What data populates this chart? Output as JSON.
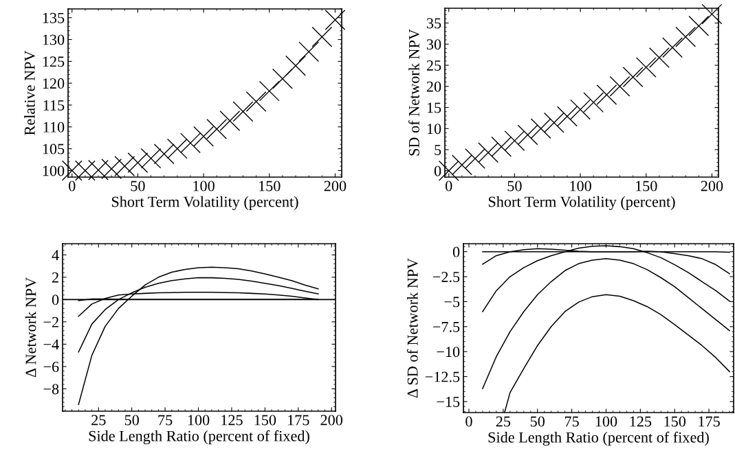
{
  "chart_data": [
    {
      "type": "scatter",
      "xlabel": "Short Term Volatility (percent)",
      "ylabel": "Relative NPV",
      "marker": "cross",
      "xlim": [
        -3,
        205
      ],
      "ylim": [
        98.5,
        137
      ],
      "xticks": [
        0,
        50,
        100,
        150,
        200
      ],
      "yticks": [
        100,
        105,
        110,
        115,
        120,
        125,
        130,
        135
      ],
      "x": [
        0,
        10,
        20,
        30,
        40,
        50,
        60,
        70,
        80,
        90,
        100,
        110,
        120,
        130,
        140,
        150,
        160,
        170,
        180,
        190,
        200
      ],
      "series": [
        {
          "color": "#000000",
          "values": [
            100,
            100,
            100.1,
            100.4,
            101,
            101.8,
            102.8,
            103.8,
            105,
            106.3,
            107.8,
            109.5,
            111.4,
            113.5,
            115.8,
            118.2,
            121,
            124,
            127.2,
            130.6,
            134.5
          ]
        }
      ]
    },
    {
      "type": "scatter",
      "xlabel": "Short Term Volatility (percent)",
      "ylabel": "SD of Network NPV",
      "marker": "cross",
      "xlim": [
        -3,
        205
      ],
      "ylim": [
        -1.5,
        38.5
      ],
      "xticks": [
        0,
        50,
        100,
        150,
        200
      ],
      "yticks": [
        0,
        5,
        10,
        15,
        20,
        25,
        30,
        35
      ],
      "x": [
        0,
        10,
        20,
        30,
        40,
        50,
        60,
        70,
        80,
        90,
        100,
        110,
        120,
        130,
        140,
        150,
        160,
        170,
        180,
        190,
        200
      ],
      "series": [
        {
          "color": "#000000",
          "values": [
            0,
            1.4,
            2.9,
            4.3,
            5.7,
            7.1,
            8.5,
            10,
            11.4,
            12.9,
            14.5,
            16.2,
            18,
            20,
            22.2,
            24.5,
            26.8,
            29.2,
            31.7,
            34.3,
            37.1
          ]
        }
      ]
    },
    {
      "type": "line",
      "xlabel": "Side Length Ratio (percent of fixed)",
      "ylabel": "Δ Network NPV",
      "marker": "none",
      "line_style": "solid",
      "xlim": [
        -2,
        203
      ],
      "ylim": [
        -10,
        5
      ],
      "xticks": [
        25,
        50,
        75,
        100,
        125,
        150,
        175,
        200
      ],
      "yticks": [
        {
          "value": -8,
          "label": "−8"
        },
        {
          "value": -6,
          "label": "−6"
        },
        {
          "value": -4,
          "label": "−4"
        },
        {
          "value": -2,
          "label": "−2"
        },
        0,
        2,
        4
      ],
      "ref_lines": [
        {
          "axis": "y",
          "value": 0,
          "color": "#000000"
        }
      ],
      "x": [
        10,
        20,
        30,
        40,
        50,
        60,
        70,
        80,
        90,
        100,
        110,
        120,
        130,
        140,
        150,
        160,
        170,
        180,
        190
      ],
      "series": [
        {
          "color": "#000000",
          "values": [
            -9.4,
            -5.0,
            -2.4,
            -0.8,
            0.3,
            1.3,
            2.0,
            2.45,
            2.7,
            2.85,
            2.9,
            2.85,
            2.75,
            2.55,
            2.3,
            2.0,
            1.7,
            1.3,
            0.95
          ]
        },
        {
          "color": "#000000",
          "values": [
            -4.7,
            -2.2,
            -0.9,
            0,
            0.6,
            1.1,
            1.45,
            1.7,
            1.85,
            1.95,
            1.95,
            1.9,
            1.8,
            1.65,
            1.45,
            1.25,
            1.0,
            0.75,
            0.5
          ]
        },
        {
          "color": "#000000",
          "values": [
            -1.5,
            -0.4,
            0.1,
            0.4,
            0.5,
            0.55,
            0.6,
            0.62,
            0.65,
            0.65,
            0.65,
            0.62,
            0.6,
            0.55,
            0.5,
            0.4,
            0.3,
            0.15,
            0
          ]
        },
        {
          "color": "#000000",
          "values": [
            -0.1,
            0.05,
            0.05,
            0.02,
            0,
            0,
            0,
            0,
            0,
            0,
            0,
            0,
            0,
            0,
            0,
            0,
            0,
            0,
            0
          ]
        }
      ]
    },
    {
      "type": "line",
      "xlabel": "Side Length Ratio (percent of fixed)",
      "ylabel": "Δ SD of Network NPV",
      "marker": "none",
      "line_style": "solid",
      "xlim": [
        -4,
        193
      ],
      "ylim": [
        -16.1,
        0.8
      ],
      "xticks": [
        0,
        25,
        50,
        75,
        100,
        125,
        150,
        175
      ],
      "yticks": [
        {
          "value": -15,
          "label": "−15"
        },
        {
          "value": -12.5,
          "label": "−12.5"
        },
        {
          "value": -10,
          "label": "−10"
        },
        {
          "value": -7.5,
          "label": "−7.5"
        },
        {
          "value": -5,
          "label": "−5"
        },
        {
          "value": -2.5,
          "label": "−2.5"
        },
        0
      ],
      "x": [
        10,
        20,
        30,
        40,
        50,
        60,
        70,
        80,
        90,
        100,
        110,
        120,
        130,
        140,
        150,
        160,
        170,
        180,
        190
      ],
      "series": [
        {
          "color": "#000000",
          "values": [
            0,
            0,
            0,
            0,
            0,
            0,
            0,
            0,
            0,
            0,
            0,
            0,
            0,
            0,
            0,
            0,
            0,
            0,
            -0.05
          ]
        },
        {
          "color": "#000000",
          "values": [
            -1.25,
            -0.4,
            0,
            0.2,
            0.3,
            0.25,
            0.15,
            0.05,
            0,
            0,
            0,
            0,
            0.05,
            0,
            -0.2,
            -0.4,
            -0.7,
            -1.3,
            -2.2
          ]
        },
        {
          "color": "#000000",
          "values": [
            -6.0,
            -3.9,
            -2.5,
            -1.6,
            -0.9,
            -0.4,
            0,
            0.35,
            0.55,
            0.6,
            0.5,
            0.3,
            -0.1,
            -0.6,
            -1.3,
            -2.1,
            -3.0,
            -3.9,
            -4.95
          ]
        },
        {
          "color": "#000000",
          "values": [
            -13.7,
            -10.5,
            -8.0,
            -6.0,
            -4.3,
            -3.0,
            -1.9,
            -1.2,
            -0.85,
            -0.7,
            -0.85,
            -1.2,
            -1.8,
            -2.6,
            -3.5,
            -4.6,
            -5.7,
            -6.8,
            -7.9
          ]
        },
        {
          "color": "#000000",
          "x": [
            26,
            30,
            40,
            50,
            60,
            70,
            80,
            90,
            100,
            110,
            120,
            130,
            140,
            150,
            160,
            170,
            180,
            190
          ],
          "values": [
            -16.1,
            -14.1,
            -11.7,
            -9.4,
            -7.5,
            -6.0,
            -5.05,
            -4.5,
            -4.3,
            -4.45,
            -4.9,
            -5.5,
            -6.3,
            -7.3,
            -8.35,
            -9.4,
            -10.6,
            -12.0
          ]
        }
      ]
    }
  ]
}
